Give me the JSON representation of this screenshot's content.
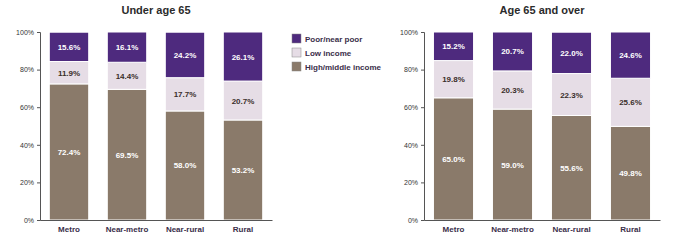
{
  "chart_data": [
    {
      "type": "bar",
      "title": "Under age 65",
      "stacked": true,
      "data_labels": true,
      "legend": "right",
      "categories": [
        "Metro",
        "Near-metro",
        "Near-rural",
        "Rural"
      ],
      "ylim": [
        0,
        100
      ],
      "yticks": [
        {
          "value": 0,
          "label": "0%"
        },
        {
          "value": 20,
          "label": "20%"
        },
        {
          "value": 40,
          "label": "40%"
        },
        {
          "value": 60,
          "label": "60%"
        },
        {
          "value": 80,
          "label": "80%"
        },
        {
          "value": 100,
          "label": "100%"
        }
      ],
      "series": [
        {
          "name": "High/middle income",
          "color": "#8a7a6a",
          "values": [
            72.4,
            69.5,
            58.0,
            53.2
          ],
          "value_labels": [
            "72.4%",
            "69.5%",
            "58.0%",
            "53.2%"
          ]
        },
        {
          "name": "Low income",
          "color": "#e6dde6",
          "values": [
            11.9,
            14.4,
            17.7,
            20.7
          ],
          "value_labels": [
            "11.9%",
            "14.4%",
            "17.7%",
            "20.7%"
          ]
        },
        {
          "name": "Poor/near poor",
          "color": "#4e2a7e",
          "values": [
            15.6,
            16.1,
            24.2,
            26.1
          ],
          "value_labels": [
            "15.6%",
            "16.1%",
            "24.2%",
            "26.1%"
          ]
        }
      ]
    },
    {
      "type": "bar",
      "title": "Age 65 and over",
      "stacked": true,
      "data_labels": true,
      "categories": [
        "Metro",
        "Near-metro",
        "Near-rural",
        "Rural"
      ],
      "ylim": [
        0,
        100
      ],
      "yticks": [
        {
          "value": 0,
          "label": "0%"
        },
        {
          "value": 20,
          "label": "20%"
        },
        {
          "value": 40,
          "label": "40%"
        },
        {
          "value": 60,
          "label": "60%"
        },
        {
          "value": 80,
          "label": "80%"
        },
        {
          "value": 100,
          "label": "100%"
        }
      ],
      "series": [
        {
          "color": "#8a7a6a",
          "values": [
            65.0,
            59.0,
            55.6,
            49.8
          ],
          "value_labels": [
            "65.0%",
            "59.0%",
            "55.6%",
            "49.8%"
          ]
        },
        {
          "color": "#e6dde6",
          "values": [
            19.8,
            20.3,
            22.3,
            25.6
          ],
          "value_labels": [
            "19.8%",
            "20.3%",
            "22.3%",
            "25.6%"
          ]
        },
        {
          "color": "#4e2a7e",
          "values": [
            15.2,
            20.7,
            22.0,
            24.6
          ],
          "value_labels": [
            "15.2%",
            "20.7%",
            "22.0%",
            "24.6%"
          ]
        }
      ]
    }
  ]
}
